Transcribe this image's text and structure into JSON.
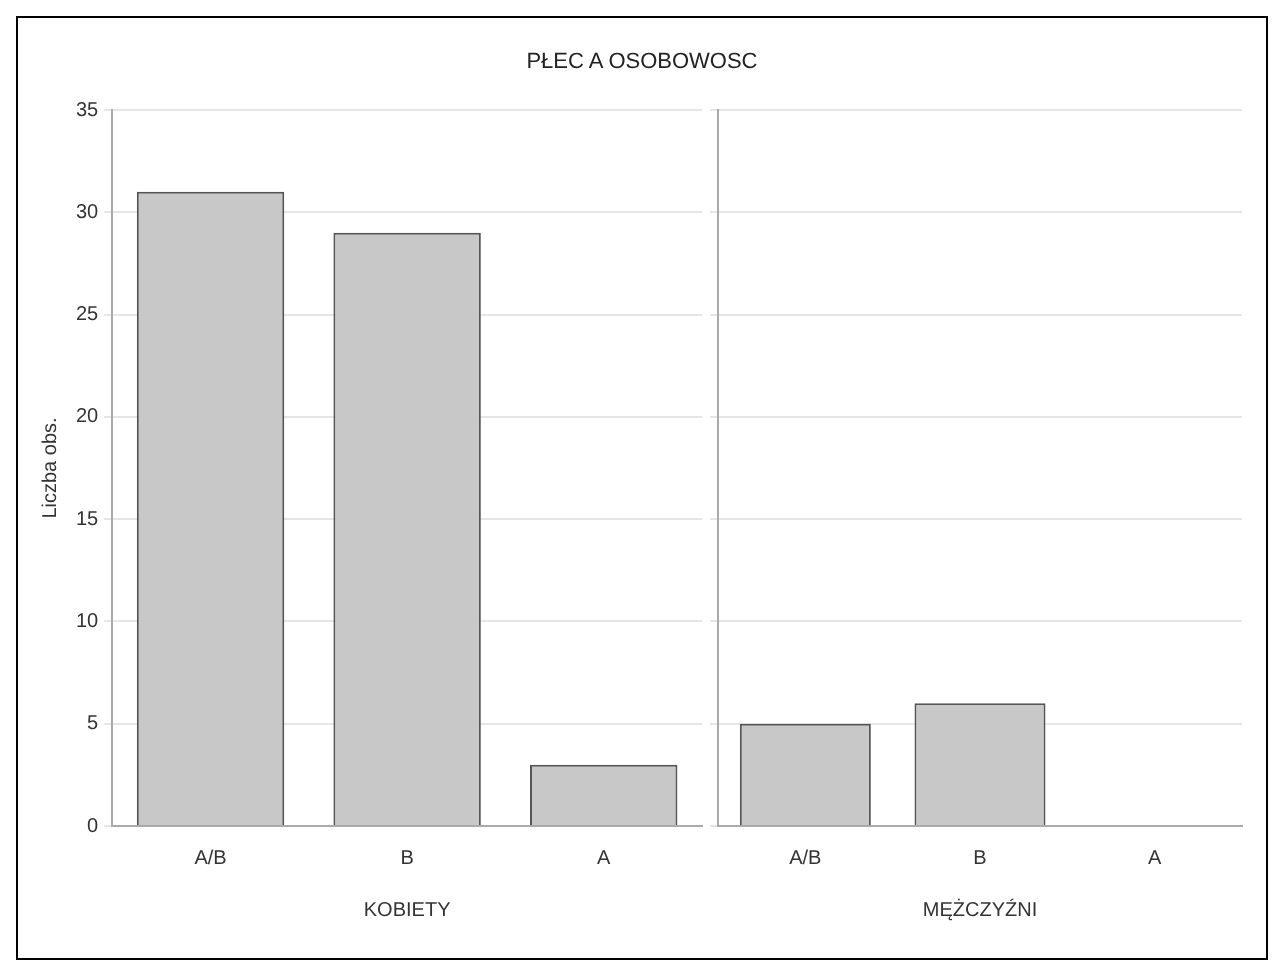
{
  "chart_data": [
    {
      "type": "bar",
      "title": "PŁEC A OSOBOWOSC",
      "xlabel": "KOBIETY",
      "ylabel": "Liczba obs.",
      "categories": [
        "A/B",
        "B",
        "A"
      ],
      "values": [
        31,
        29,
        3
      ],
      "color": "#c8c8c8",
      "ylim": [
        0,
        35
      ],
      "yticks": [
        0,
        5,
        10,
        15,
        20,
        25,
        30,
        35
      ],
      "grid": "y",
      "legend": false
    },
    {
      "type": "bar",
      "xlabel": "MĘŻCZYŹNI",
      "categories": [
        "A/B",
        "B",
        "A"
      ],
      "values": [
        5,
        6,
        0
      ],
      "color": "#c8c8c8",
      "ylim": [
        0,
        35
      ],
      "yticks": [
        0,
        5,
        10,
        15,
        20,
        25,
        30,
        35
      ],
      "grid": "y",
      "legend": false,
      "tick_labels": "x"
    }
  ]
}
